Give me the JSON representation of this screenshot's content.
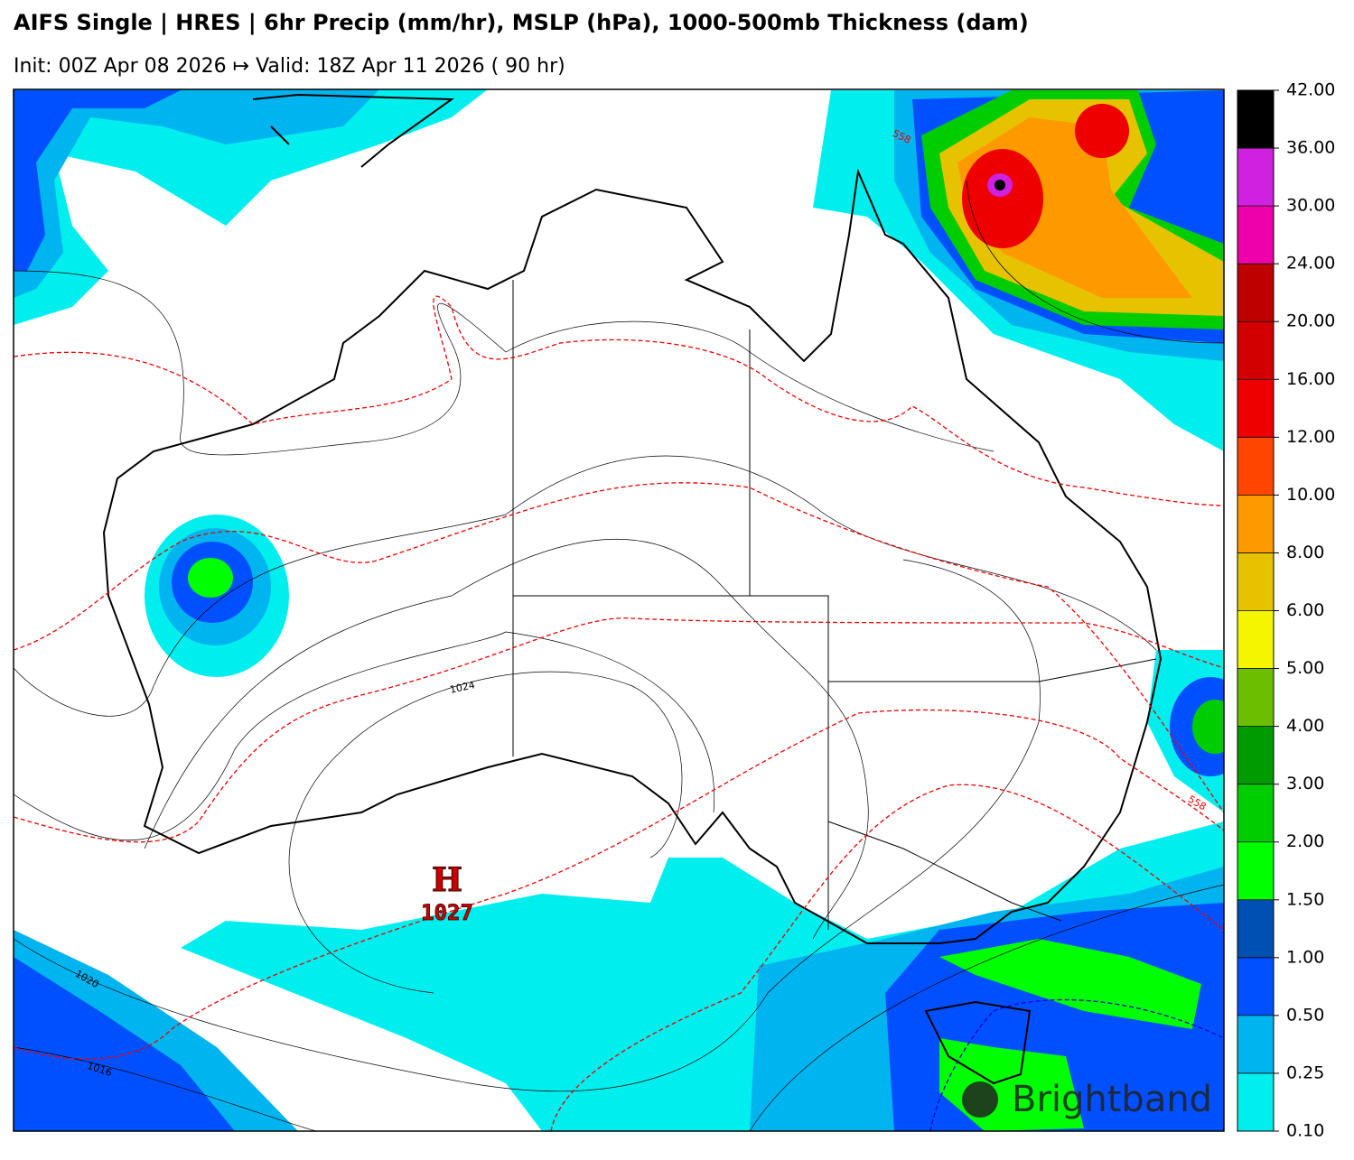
{
  "header": {
    "title": "AIFS Single | HRES | 6hr Precip (mm/hr), MSLP (hPa), 1000-500mb Thickness (dam)",
    "subtitle": "Init: 00Z Apr 08 2026 ↦ Valid: 18Z Apr 11 2026 ( 90 hr)"
  },
  "map": {
    "isobar_labels": [
      "1024",
      "1020",
      "1016"
    ],
    "thickness_labels": [
      "558",
      "558"
    ],
    "high": {
      "symbol": "H",
      "pressure": "1027"
    },
    "logo": "Brightband"
  },
  "colorbar": {
    "ticks": [
      {
        "value": 0.1,
        "label": "0.10"
      },
      {
        "value": 0.25,
        "label": "0.25"
      },
      {
        "value": 0.5,
        "label": "0.50"
      },
      {
        "value": 1,
        "label": "1.00"
      },
      {
        "value": 1.5,
        "label": "1.50"
      },
      {
        "value": 2,
        "label": "2.00"
      },
      {
        "value": 3,
        "label": "3.00"
      },
      {
        "value": 4,
        "label": "4.00"
      },
      {
        "value": 5,
        "label": "5.00"
      },
      {
        "value": 6,
        "label": "6.00"
      },
      {
        "value": 8,
        "label": "8.00"
      },
      {
        "value": 10,
        "label": "10.00"
      },
      {
        "value": 12,
        "label": "12.00"
      },
      {
        "value": 16,
        "label": "16.00"
      },
      {
        "value": 20,
        "label": "20.00"
      },
      {
        "value": 24,
        "label": "24.00"
      },
      {
        "value": 30,
        "label": "30.00"
      },
      {
        "value": 36,
        "label": "36.00"
      },
      {
        "value": 42,
        "label": "42.00"
      }
    ],
    "colors": [
      "#00eeee",
      "#00b4f0",
      "#0050ff",
      "#0050b4",
      "#00ff00",
      "#00cd00",
      "#009b00",
      "#6bbf00",
      "#f5f500",
      "#e6c200",
      "#ff9900",
      "#ff4500",
      "#ee0000",
      "#d20000",
      "#be0000",
      "#ee00aa",
      "#d020e0",
      "#000000"
    ]
  }
}
